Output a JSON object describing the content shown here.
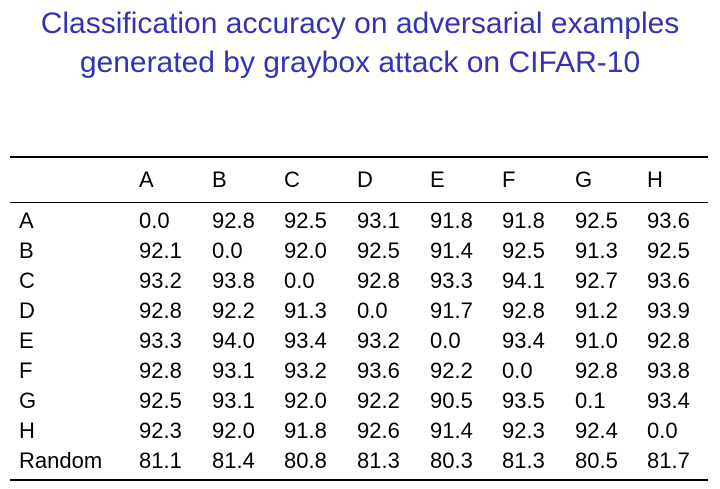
{
  "title": {
    "line1": "Classification accuracy on adversarial examples",
    "line2": "generated by graybox attack on CIFAR-10"
  },
  "table": {
    "columns": [
      "A",
      "B",
      "C",
      "D",
      "E",
      "F",
      "G",
      "H"
    ],
    "rows": [
      {
        "label": "A",
        "values": [
          "0.0",
          "92.8",
          "92.5",
          "93.1",
          "91.8",
          "91.8",
          "92.5",
          "93.6"
        ]
      },
      {
        "label": "B",
        "values": [
          "92.1",
          "0.0",
          "92.0",
          "92.5",
          "91.4",
          "92.5",
          "91.3",
          "92.5"
        ]
      },
      {
        "label": "C",
        "values": [
          "93.2",
          "93.8",
          "0.0",
          "92.8",
          "93.3",
          "94.1",
          "92.7",
          "93.6"
        ]
      },
      {
        "label": "D",
        "values": [
          "92.8",
          "92.2",
          "91.3",
          "0.0",
          "91.7",
          "92.8",
          "91.2",
          "93.9"
        ]
      },
      {
        "label": "E",
        "values": [
          "93.3",
          "94.0",
          "93.4",
          "93.2",
          "0.0",
          "93.4",
          "91.0",
          "92.8"
        ]
      },
      {
        "label": "F",
        "values": [
          "92.8",
          "93.1",
          "93.2",
          "93.6",
          "92.2",
          "0.0",
          "92.8",
          "93.8"
        ]
      },
      {
        "label": "G",
        "values": [
          "92.5",
          "93.1",
          "92.0",
          "92.2",
          "90.5",
          "93.5",
          "0.1",
          "93.4"
        ]
      },
      {
        "label": "H",
        "values": [
          "92.3",
          "92.0",
          "91.8",
          "92.6",
          "91.4",
          "92.3",
          "92.4",
          "0.0"
        ]
      },
      {
        "label": "Random",
        "values": [
          "81.1",
          "81.4",
          "80.8",
          "81.3",
          "80.3",
          "81.3",
          "80.5",
          "81.7"
        ]
      }
    ]
  },
  "colors": {
    "title": "#3333b3",
    "text": "#000000",
    "background": "#ffffff"
  }
}
